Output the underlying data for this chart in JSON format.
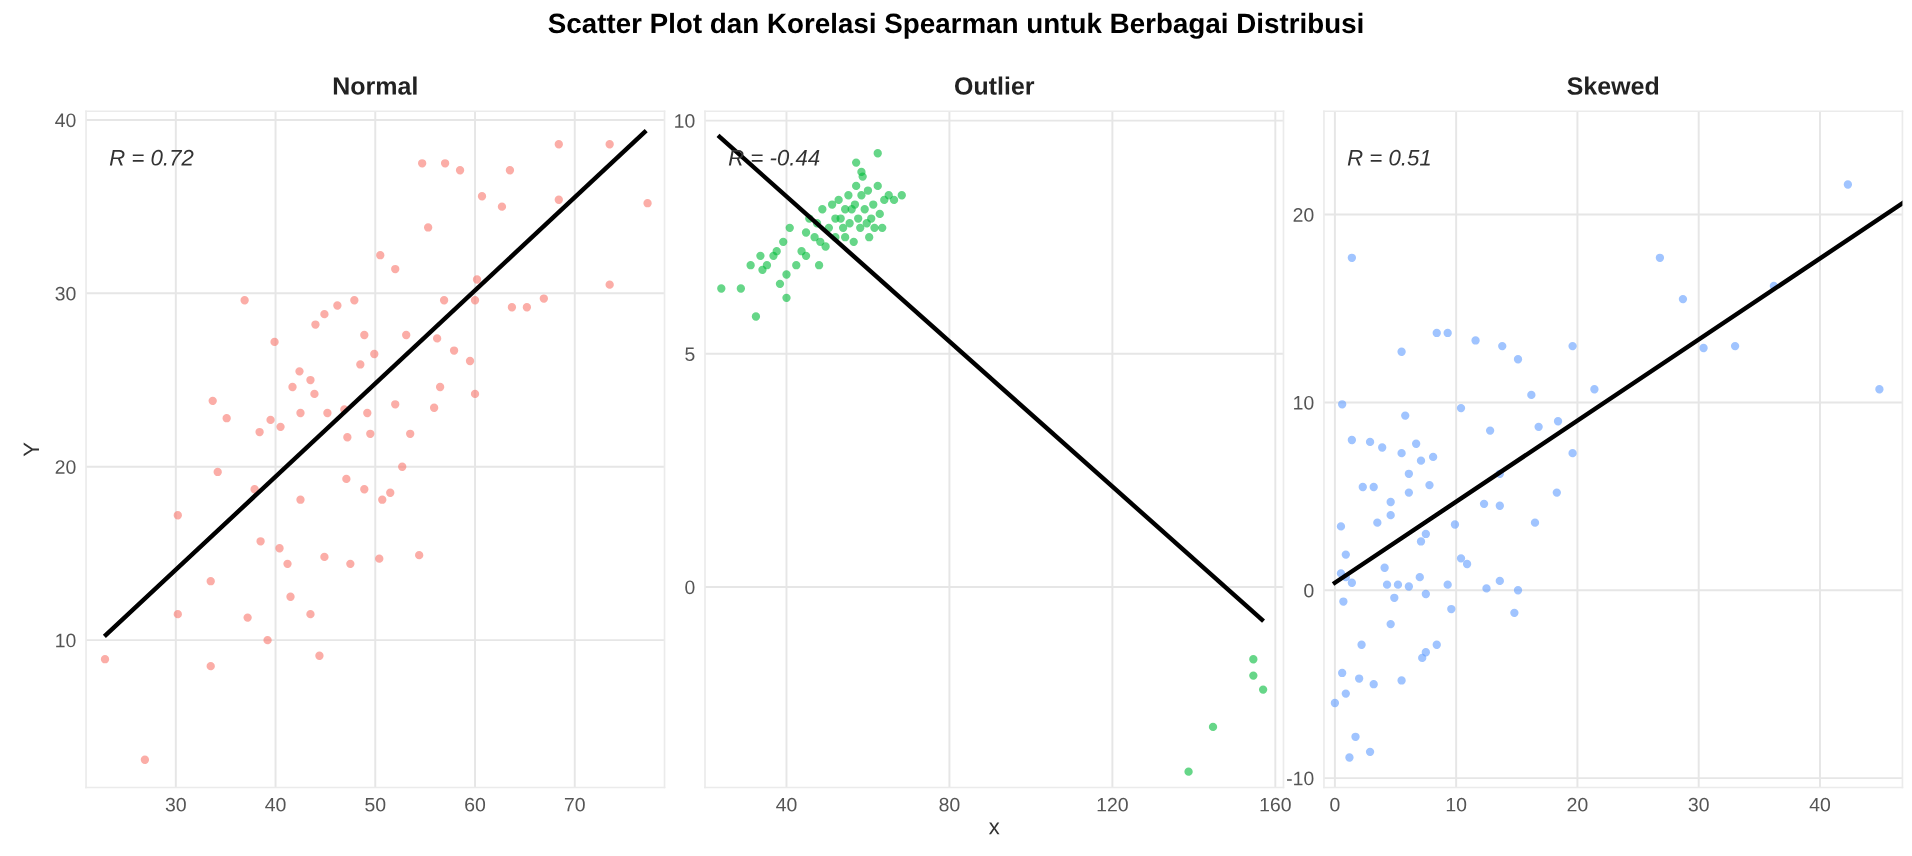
{
  "chart_data": [
    {
      "type": "scatter",
      "title": "Scatter Plot dan Korelasi Spearman untuk Berbagai Distribusi",
      "subtitle": "Normal",
      "ylabel": "Y",
      "annotations": [
        "R = 0.72"
      ],
      "xlim": [
        21,
        79
      ],
      "ylim": [
        1.5,
        40.5
      ],
      "xticks": [
        30,
        40,
        50,
        60,
        70
      ],
      "yticks": [
        10,
        20,
        30,
        40
      ],
      "grid": true,
      "series": [
        {
          "marker": "circle",
          "color": "#f8766d",
          "x": [
            22.9,
            26.9,
            30.2,
            30.2,
            33.5,
            33.5,
            33.7,
            34.2,
            35.1,
            36.9,
            37.2,
            37.9,
            38.5,
            39.2,
            38.4,
            39.5,
            39.9,
            40.4,
            40.5,
            41.2,
            41.5,
            41.7,
            42.4,
            42.5,
            42.5,
            43.5,
            43.5,
            43.9,
            44,
            44.4,
            44.9,
            44.9,
            45.2,
            46.2,
            46.9,
            47.1,
            47.2,
            47.5,
            47.9,
            48.5,
            48.9,
            48.9,
            49.2,
            49.5,
            49.9,
            50.4,
            50.5,
            50.7,
            51.5,
            52,
            52,
            52.7,
            53.1,
            53.5,
            54.4,
            54.7,
            55.3,
            55.9,
            56.2,
            56.5,
            56.9,
            57,
            57.9,
            58.5,
            59.5,
            60,
            60,
            60.2,
            60.7,
            62.7,
            63.5,
            63.7,
            65.2,
            66.9,
            68.4,
            68.4,
            73.5,
            73.5,
            77.3
          ],
          "values": [
            8.9,
            3.1,
            11.5,
            17.2,
            8.5,
            13.4,
            23.8,
            19.7,
            22.8,
            29.6,
            11.3,
            18.7,
            15.7,
            10,
            22,
            22.7,
            27.2,
            15.3,
            22.3,
            14.4,
            12.5,
            24.6,
            25.5,
            18.1,
            23.1,
            25,
            11.5,
            24.2,
            28.2,
            9.1,
            28.8,
            14.8,
            23.1,
            29.3,
            23.3,
            19.3,
            21.7,
            14.4,
            29.6,
            25.9,
            27.6,
            18.7,
            23.1,
            21.9,
            26.5,
            14.7,
            32.2,
            18.1,
            18.5,
            31.4,
            23.6,
            20,
            27.6,
            21.9,
            14.9,
            37.5,
            33.8,
            23.4,
            27.4,
            24.6,
            29.6,
            37.5,
            26.7,
            37.1,
            26.1,
            29.6,
            24.2,
            30.8,
            35.6,
            35,
            37.1,
            29.2,
            29.2,
            29.7,
            35.4,
            38.6,
            30.5,
            38.6,
            35.2
          ]
        },
        {
          "type": "line",
          "color": "#000000",
          "x": [
            23,
            77
          ],
          "values": [
            10.3,
            39.3
          ]
        }
      ]
    },
    {
      "type": "scatter",
      "subtitle": "Outlier",
      "xlabel": "x",
      "annotations": [
        "R = -0.44"
      ],
      "xlim": [
        20,
        162
      ],
      "ylim": [
        -4.3,
        10.2
      ],
      "xticks": [
        40,
        80,
        120,
        160
      ],
      "yticks": [
        0,
        5,
        10
      ],
      "grid": true,
      "series": [
        {
          "marker": "circle",
          "color": "#00ba38",
          "x": [
            24,
            28.8,
            32.5,
            31.2,
            33.6,
            35.2,
            36.8,
            38.4,
            39.2,
            40,
            40.8,
            42.4,
            43.7,
            44.8,
            45.6,
            46.9,
            47.5,
            48,
            48.8,
            49.6,
            50.4,
            51.2,
            52,
            52.8,
            53.3,
            53.9,
            54.4,
            55.2,
            55.5,
            56.5,
            56.8,
            57.1,
            57.6,
            58.1,
            58.4,
            58.7,
            59.2,
            59.7,
            60,
            60.3,
            60.8,
            61.3,
            61.6,
            62.4,
            62.4,
            62.9,
            63.5,
            64,
            65.1,
            66.4,
            68.3,
            57.1,
            58.4,
            44.8,
            37.6,
            40,
            34.1,
            48.3,
            52,
            54.4,
            56,
            154.6,
            154.6,
            157,
            144.7,
            138.7
          ],
          "values": [
            6.4,
            6.4,
            5.8,
            6.9,
            7.1,
            6.9,
            7.1,
            6.5,
            7.4,
            6.7,
            7.7,
            6.9,
            7.2,
            7.6,
            7.9,
            7.5,
            7.8,
            6.9,
            8.1,
            7.3,
            7.7,
            8.2,
            7.5,
            8.3,
            7.9,
            7.7,
            8.1,
            8.4,
            7.8,
            7.4,
            8.2,
            8.6,
            7.9,
            7.7,
            8.4,
            8.8,
            8.1,
            7.8,
            8.5,
            7.5,
            7.9,
            8.2,
            7.7,
            9.3,
            8.6,
            8,
            7.7,
            8.3,
            8.4,
            8.3,
            8.4,
            9.1,
            8.9,
            7.1,
            7.2,
            6.2,
            6.8,
            7.4,
            7.9,
            7.5,
            8.1,
            -1.55,
            -1.9,
            -2.2,
            -3,
            -3.96
          ]
        },
        {
          "type": "line",
          "color": "#000000",
          "x": [
            23.6,
            156.7
          ],
          "values": [
            9.65,
            -0.7
          ]
        }
      ]
    },
    {
      "type": "scatter",
      "subtitle": "Skewed",
      "annotations": [
        "R = 0.51"
      ],
      "xlim": [
        -0.9,
        46.8
      ],
      "ylim": [
        -10.5,
        25.5
      ],
      "xticks": [
        0,
        10,
        20,
        30,
        40
      ],
      "yticks": [
        {
          "value": -10,
          "label": "-10"
        },
        0,
        10,
        20
      ],
      "grid": true,
      "series": [
        {
          "marker": "circle",
          "color": "#619cff",
          "x": [
            1.4,
            0.6,
            5.5,
            8.4,
            9.3,
            11.6,
            13.8,
            15.1,
            19.6,
            16.2,
            21.4,
            10.4,
            5.8,
            12.8,
            16.8,
            18.4,
            1.4,
            2.9,
            3.9,
            5.5,
            6.7,
            7.1,
            8.1,
            19.6,
            6.1,
            2.3,
            3.2,
            7.8,
            13.6,
            4.6,
            6.1,
            12.3,
            13.6,
            18.3,
            3.5,
            4.6,
            9.9,
            16.5,
            0.5,
            0.9,
            7.5,
            7.1,
            10.4,
            10.9,
            0.9,
            1.4,
            0.5,
            4.1,
            4.3,
            5.2,
            6.1,
            7,
            9.3,
            12.5,
            13.6,
            15.1,
            7.5,
            0.7,
            4.9,
            9.6,
            14.8,
            4.6,
            2.2,
            8.4,
            7.5,
            7.2,
            0.6,
            2,
            3.2,
            5.5,
            0,
            0.9,
            1.7,
            2.9,
            1.2,
            26.8,
            28.7,
            30.4,
            33,
            36.2,
            42.3,
            44.9
          ],
          "values": [
            17.7,
            9.9,
            12.7,
            13.7,
            13.7,
            13.3,
            13,
            12.3,
            13,
            10.4,
            10.7,
            9.7,
            9.3,
            8.5,
            8.7,
            9,
            8,
            7.9,
            7.6,
            7.3,
            7.8,
            6.9,
            7.1,
            7.3,
            6.2,
            5.5,
            5.5,
            5.6,
            6.2,
            4.7,
            5.2,
            4.6,
            4.5,
            5.2,
            3.6,
            4,
            3.5,
            3.6,
            3.4,
            1.9,
            3,
            2.6,
            1.7,
            1.4,
            0.7,
            0.4,
            0.9,
            1.2,
            0.3,
            0.3,
            0.2,
            0.7,
            0.3,
            0.1,
            0.5,
            0,
            -0.2,
            -0.6,
            -0.4,
            -1,
            -1.2,
            -1.8,
            -2.9,
            -2.9,
            -3.3,
            -3.6,
            -4.4,
            -4.7,
            -5,
            -4.8,
            -6,
            -5.5,
            -7.8,
            -8.6,
            -8.9,
            17.7,
            15.5,
            12.9,
            13,
            16.2,
            21.6,
            10.7
          ]
        },
        {
          "type": "line",
          "color": "#000000",
          "x": [
            0,
            46.8
          ],
          "values": [
            0.4,
            20.6
          ]
        }
      ]
    }
  ]
}
